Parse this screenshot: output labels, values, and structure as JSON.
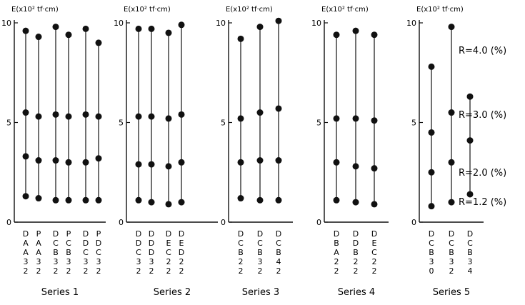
{
  "chart_data": {
    "type": "scatter",
    "ylabel": "E(x10² tf·cm)",
    "ylim": [
      0,
      10
    ],
    "yticks": [
      0,
      5,
      10
    ],
    "r_labels": [
      "R=4.0 (%)",
      "R=3.0 (%)",
      "R=2.0 (%)",
      "R=1.2 (%)"
    ],
    "panels": [
      {
        "title": "Series 1",
        "specimens": [
          {
            "label": "DAA32",
            "values": [
              1.3,
              3.3,
              5.5,
              9.6
            ]
          },
          {
            "label": "PAA32",
            "values": [
              1.2,
              3.1,
              5.3,
              9.3
            ]
          },
          {
            "label": "DCB32",
            "values": [
              1.1,
              3.1,
              5.4,
              9.8
            ]
          },
          {
            "label": "PCB32",
            "values": [
              1.1,
              3.0,
              5.3,
              9.4
            ]
          },
          {
            "label": "DDC32",
            "values": [
              1.1,
              3.0,
              5.4,
              9.7
            ]
          },
          {
            "label": "PDC32",
            "values": [
              1.1,
              3.2,
              5.3,
              9.0
            ]
          }
        ]
      },
      {
        "title": "Series 2",
        "specimens": [
          {
            "label": "DDC32",
            "values": [
              1.1,
              2.9,
              5.3,
              9.7
            ]
          },
          {
            "label": "DDD32",
            "values": [
              1.0,
              2.9,
              5.3,
              9.7
            ]
          },
          {
            "label": "DEC22",
            "values": [
              0.9,
              2.8,
              5.2,
              9.5
            ]
          },
          {
            "label": "DED22",
            "values": [
              1.0,
              3.0,
              5.4,
              9.9
            ]
          }
        ]
      },
      {
        "title": "Series 3",
        "specimens": [
          {
            "label": "DCB22",
            "values": [
              1.2,
              3.0,
              5.2,
              9.2
            ]
          },
          {
            "label": "DCB32",
            "values": [
              1.1,
              3.1,
              5.5,
              9.8
            ]
          },
          {
            "label": "DCB42",
            "values": [
              1.1,
              3.1,
              5.7,
              10.1
            ]
          }
        ]
      },
      {
        "title": "Series 4",
        "specimens": [
          {
            "label": "DBA22",
            "values": [
              1.1,
              3.0,
              5.2,
              9.4
            ]
          },
          {
            "label": "DDB22",
            "values": [
              1.0,
              2.8,
              5.2,
              9.6
            ]
          },
          {
            "label": "DEC22",
            "values": [
              0.9,
              2.7,
              5.1,
              9.4
            ]
          }
        ]
      },
      {
        "title": "Series 5",
        "specimens": [
          {
            "label": "DCB30",
            "values": [
              0.8,
              2.5,
              4.5,
              7.8
            ]
          },
          {
            "label": "DCB32",
            "values": [
              1.0,
              3.0,
              5.5,
              9.8
            ]
          },
          {
            "label": "DCB34",
            "values": [
              1.4,
              4.1,
              6.3
            ]
          }
        ]
      }
    ]
  }
}
